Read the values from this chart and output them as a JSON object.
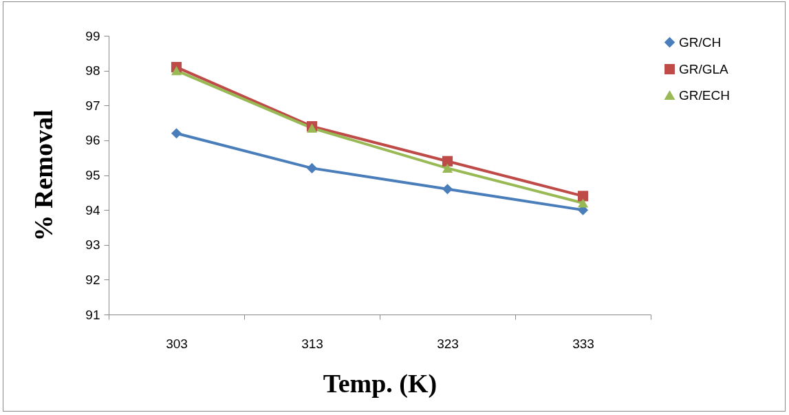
{
  "chart_data": {
    "type": "line",
    "xlabel": "Temp. (K)",
    "ylabel": "% Removal",
    "categories": [
      "303",
      "313",
      "323",
      "333"
    ],
    "series": [
      {
        "name": "GR/CH",
        "color": "#4a7ebb",
        "marker": "diamond",
        "values": [
          96.2,
          95.2,
          94.6,
          94.0
        ]
      },
      {
        "name": "GR/GLA",
        "color": "#be4b48",
        "marker": "square",
        "values": [
          98.1,
          96.4,
          95.4,
          94.4
        ]
      },
      {
        "name": "GR/ECH",
        "color": "#98b954",
        "marker": "triangle",
        "values": [
          98.0,
          96.35,
          95.2,
          94.2
        ]
      }
    ],
    "ylim": [
      91,
      99
    ],
    "yticks": [
      91,
      92,
      93,
      94,
      95,
      96,
      97,
      98,
      99
    ],
    "grid": false,
    "legend": "right",
    "line_style": "solid"
  }
}
